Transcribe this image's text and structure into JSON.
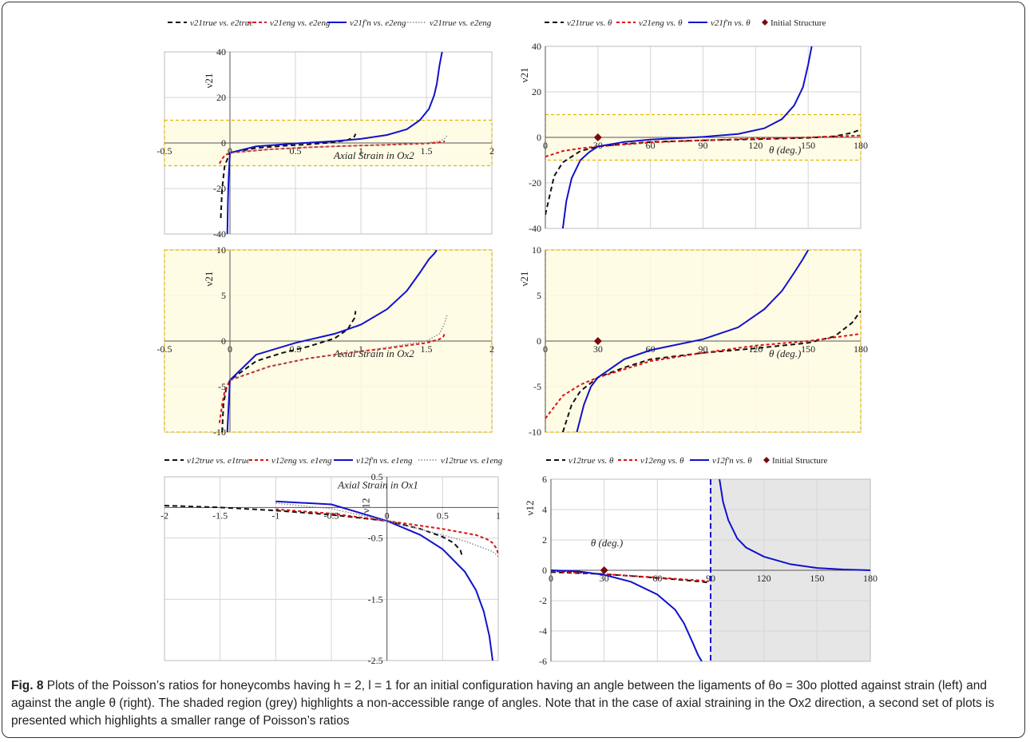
{
  "caption": {
    "fig_label": "Fig. 8",
    "text": "Plots of the Poisson’s ratios for honeycombs having h = 2, l = 1 for an initial configuration having an angle between the ligaments of θo = 30o plotted against strain (left) and against the angle θ (right). The shaded region (grey) highlights a non-accessible range of angles. Note that in the case of axial straining in the Ox2 direction, a second set of plots is presented which highlights a smaller range of Poisson’s ratios"
  },
  "colors": {
    "true": "#111111",
    "eng": "#dd1111",
    "fn": "#1111cc",
    "dotted": "#8a8a8a",
    "marker": "#7a0a0a",
    "highlight_fill": "#fffbe0",
    "highlight_border": "#e6b400",
    "grey_region": "#e6e6e6",
    "grid": "#d6d6d6"
  },
  "chart_data": [
    {
      "id": "p1",
      "type": "line",
      "xlabel": "Axial Strain in Ox2",
      "ylabel": "ν21",
      "xlim": [
        -0.5,
        2
      ],
      "ylim": [
        -40,
        40
      ],
      "xticks": [
        "-0.5",
        "0",
        "0.5",
        "1",
        "1.5",
        "2"
      ],
      "yticks": [
        "40",
        "20",
        "0",
        "-20",
        "-40"
      ],
      "legend": [
        "ν21true vs. e2true",
        "ν21eng vs. e2eng",
        "ν21f'n vs. e2eng",
        "ν21true vs. e2eng"
      ],
      "highlight_y": [
        -10,
        10
      ],
      "series": [
        {
          "style": "true",
          "x": [
            -0.07,
            -0.06,
            -0.04,
            0,
            0.2,
            0.4,
            0.6,
            0.8,
            0.9,
            0.95,
            0.96
          ],
          "y": [
            -33,
            -20,
            -10,
            -4.3,
            -2.2,
            -1.3,
            -0.6,
            0.3,
            1.3,
            2.8,
            4
          ]
        },
        {
          "style": "eng",
          "x": [
            -0.08,
            -0.06,
            -0.04,
            0,
            0.3,
            0.6,
            0.9,
            1.2,
            1.5,
            1.6,
            1.63,
            1.64
          ],
          "y": [
            -9,
            -7,
            -5.5,
            -4.3,
            -2.8,
            -1.9,
            -1.3,
            -0.8,
            -0.2,
            0.2,
            0.5,
            0.8
          ]
        },
        {
          "style": "fn",
          "x": [
            -0.02,
            -0.015,
            -0.01,
            0,
            0.2,
            0.5,
            0.8,
            1.0,
            1.2,
            1.35,
            1.45,
            1.52,
            1.56,
            1.58,
            1.6,
            1.62
          ],
          "y": [
            -40,
            -25,
            -15,
            -4.3,
            -1.5,
            -0.2,
            0.8,
            1.8,
            3.5,
            6,
            10,
            15,
            21,
            26,
            34,
            40
          ]
        },
        {
          "style": "dotted",
          "x": [
            0,
            0.3,
            0.6,
            0.9,
            1.2,
            1.5,
            1.6,
            1.64,
            1.66
          ],
          "y": [
            -4.3,
            -2.8,
            -1.9,
            -1.3,
            -0.7,
            0,
            0.8,
            2,
            3.5
          ]
        }
      ]
    },
    {
      "id": "p2",
      "type": "line",
      "xlabel": "θ (deg.)",
      "ylabel": "ν21",
      "xlim": [
        0,
        180
      ],
      "ylim": [
        -40,
        40
      ],
      "xticks": [
        "0",
        "30",
        "60",
        "90",
        "120",
        "150",
        "180"
      ],
      "yticks": [
        "40",
        "20",
        "0",
        "-20",
        "-40"
      ],
      "legend": [
        "ν21true vs. θ",
        "ν21eng vs. θ",
        "ν21f'n vs. θ",
        "Initial Structure"
      ],
      "highlight_y": [
        -10,
        10
      ],
      "marker": {
        "x": 30,
        "y": 0
      },
      "series": [
        {
          "style": "true",
          "x": [
            0,
            5,
            10,
            20,
            30,
            45,
            60,
            90,
            120,
            150,
            165,
            175,
            180
          ],
          "y": [
            -34,
            -17,
            -11,
            -6,
            -4,
            -2.9,
            -2,
            -1.3,
            -0.8,
            -0.2,
            0.5,
            2,
            3.5
          ]
        },
        {
          "style": "eng",
          "x": [
            0,
            10,
            20,
            30,
            60,
            90,
            120,
            150,
            180
          ],
          "y": [
            -8.5,
            -6,
            -4.8,
            -4,
            -2.2,
            -1.3,
            -0.5,
            0,
            0.8
          ]
        },
        {
          "style": "fn",
          "x": [
            10,
            12,
            15,
            20,
            25,
            30,
            45,
            60,
            90,
            110,
            125,
            135,
            142,
            147,
            150,
            152
          ],
          "y": [
            -40,
            -28,
            -18,
            -10,
            -6.5,
            -4,
            -2,
            -1,
            0.2,
            1.5,
            4,
            8,
            14,
            22,
            32,
            40
          ]
        }
      ]
    },
    {
      "id": "p3",
      "type": "line",
      "xlabel": "Axial Strain in Ox2",
      "ylabel": "ν21",
      "xlim": [
        -0.5,
        2
      ],
      "ylim": [
        -10,
        10
      ],
      "xticks": [
        "-0.5",
        "0",
        "0.5",
        "1",
        "1.5",
        "2"
      ],
      "yticks": [
        "10",
        "5",
        "0",
        "-5",
        "-10"
      ],
      "highlight_y": [
        -10,
        10
      ],
      "series": [
        {
          "style": "true",
          "x": [
            -0.06,
            -0.05,
            -0.03,
            0,
            0.2,
            0.4,
            0.6,
            0.8,
            0.9,
            0.95,
            0.96
          ],
          "y": [
            -10,
            -7,
            -5.3,
            -4.3,
            -2.2,
            -1.3,
            -0.6,
            0.3,
            1.3,
            2.5,
            3.3
          ]
        },
        {
          "style": "eng",
          "x": [
            -0.08,
            -0.06,
            -0.04,
            0,
            0.3,
            0.6,
            0.9,
            1.2,
            1.5,
            1.6,
            1.63,
            1.64
          ],
          "y": [
            -9,
            -7,
            -5.5,
            -4.3,
            -2.8,
            -1.9,
            -1.3,
            -0.8,
            -0.2,
            0.2,
            0.5,
            0.8
          ]
        },
        {
          "style": "fn",
          "x": [
            -0.02,
            -0.01,
            0,
            0.2,
            0.5,
            0.8,
            1.0,
            1.2,
            1.35,
            1.45,
            1.52,
            1.56,
            1.58
          ],
          "y": [
            -10,
            -7,
            -4.3,
            -1.5,
            -0.2,
            0.8,
            1.8,
            3.5,
            5.5,
            7.5,
            9,
            9.6,
            10
          ]
        },
        {
          "style": "dotted",
          "x": [
            0,
            0.3,
            0.6,
            0.9,
            1.2,
            1.5,
            1.6,
            1.64,
            1.66
          ],
          "y": [
            -4.3,
            -2.8,
            -1.9,
            -1.3,
            -0.7,
            0,
            0.8,
            2,
            3
          ]
        }
      ]
    },
    {
      "id": "p4",
      "type": "line",
      "xlabel": "θ (deg.)",
      "ylabel": "ν21",
      "xlim": [
        0,
        180
      ],
      "ylim": [
        -10,
        10
      ],
      "xticks": [
        "0",
        "30",
        "60",
        "90",
        "120",
        "150",
        "180"
      ],
      "yticks": [
        "10",
        "5",
        "0",
        "-5",
        "-10"
      ],
      "highlight_y": [
        -10,
        10
      ],
      "marker": {
        "x": 30,
        "y": 0
      },
      "series": [
        {
          "style": "true",
          "x": [
            10,
            15,
            20,
            30,
            45,
            60,
            90,
            120,
            150,
            165,
            175,
            180
          ],
          "y": [
            -10,
            -7,
            -5.5,
            -4,
            -2.9,
            -2,
            -1.3,
            -0.8,
            -0.2,
            0.5,
            2,
            3.3
          ]
        },
        {
          "style": "eng",
          "x": [
            0,
            10,
            20,
            30,
            60,
            90,
            120,
            150,
            180
          ],
          "y": [
            -8.5,
            -6,
            -4.8,
            -4,
            -2.2,
            -1.3,
            -0.5,
            0,
            0.8
          ]
        },
        {
          "style": "fn",
          "x": [
            18,
            22,
            26,
            30,
            45,
            60,
            90,
            110,
            125,
            135,
            142,
            147,
            150
          ],
          "y": [
            -10,
            -7,
            -5,
            -4,
            -2,
            -1,
            0.2,
            1.5,
            3.5,
            5.5,
            7.5,
            9,
            10
          ]
        }
      ]
    },
    {
      "id": "p5",
      "type": "line",
      "xlabel": "Axial Strain in Ox1",
      "ylabel": "ν12",
      "xlim": [
        -2,
        1
      ],
      "ylim": [
        -2.5,
        0.5
      ],
      "xticks": [
        "-2",
        "-1.5",
        "-1",
        "-0.5",
        "0",
        "0.5",
        "1"
      ],
      "yticks": [
        "0.5",
        "-0.5",
        "-1.5",
        "-2.5"
      ],
      "legend": [
        "ν12true vs. e1true",
        "ν12eng vs. e1eng",
        "ν12f'n vs. e1eng",
        "ν12true vs. e1eng"
      ],
      "series": [
        {
          "style": "true",
          "x": [
            -2,
            -1.5,
            -1,
            -0.5,
            0,
            0.3,
            0.5,
            0.6,
            0.66,
            0.68
          ],
          "y": [
            0.03,
            0,
            -0.05,
            -0.12,
            -0.22,
            -0.35,
            -0.48,
            -0.58,
            -0.7,
            -0.82
          ]
        },
        {
          "style": "eng",
          "x": [
            -1,
            -0.5,
            0,
            0.5,
            0.8,
            0.9,
            0.95,
            0.98,
            1.0
          ],
          "y": [
            -0.03,
            -0.1,
            -0.22,
            -0.35,
            -0.45,
            -0.52,
            -0.58,
            -0.66,
            -0.75
          ]
        },
        {
          "style": "fn",
          "x": [
            -1,
            -0.5,
            0,
            0.3,
            0.5,
            0.7,
            0.8,
            0.87,
            0.92,
            0.95
          ],
          "y": [
            0.1,
            0.05,
            -0.22,
            -0.45,
            -0.68,
            -1.05,
            -1.35,
            -1.7,
            -2.1,
            -2.5
          ]
        },
        {
          "style": "dotted",
          "x": [
            -1,
            -0.5,
            0,
            0.4,
            0.7,
            0.85,
            0.95,
            1.0
          ],
          "y": [
            0.07,
            -0.02,
            -0.22,
            -0.4,
            -0.55,
            -0.65,
            -0.72,
            -0.8
          ]
        }
      ]
    },
    {
      "id": "p6",
      "type": "line",
      "xlabel": "θ (deg.)",
      "ylabel": "ν12",
      "xlim": [
        0,
        180
      ],
      "ylim": [
        -6,
        6
      ],
      "xticks": [
        "0",
        "30",
        "60",
        "90",
        "120",
        "150",
        "180"
      ],
      "yticks": [
        "6",
        "4",
        "2",
        "0",
        "-2",
        "-4",
        "-6"
      ],
      "legend": [
        "ν12true vs. θ",
        "ν12eng vs. θ",
        "ν12f'n vs. θ",
        "Initial Structure"
      ],
      "grey_x": [
        90,
        180
      ],
      "asymptote_x": 90,
      "marker": {
        "x": 30,
        "y": 0
      },
      "series": [
        {
          "style": "true",
          "x": [
            0,
            30,
            60,
            85,
            89
          ],
          "y": [
            -0.12,
            -0.25,
            -0.5,
            -0.75,
            -0.82
          ]
        },
        {
          "style": "eng",
          "x": [
            0,
            30,
            60,
            85,
            89
          ],
          "y": [
            -0.05,
            -0.25,
            -0.48,
            -0.68,
            -0.72
          ]
        },
        {
          "style": "fn",
          "x": [
            0,
            15,
            30,
            45,
            60,
            70,
            75,
            80,
            83,
            85
          ],
          "y": [
            0,
            -0.07,
            -0.3,
            -0.75,
            -1.6,
            -2.6,
            -3.5,
            -4.8,
            -5.6,
            -6
          ]
        },
        {
          "style": "fn",
          "x": [
            95,
            97,
            100,
            105,
            110,
            120,
            135,
            150,
            165,
            180
          ],
          "y": [
            6,
            4.5,
            3.3,
            2.1,
            1.5,
            0.9,
            0.4,
            0.15,
            0.05,
            0
          ]
        }
      ]
    }
  ]
}
